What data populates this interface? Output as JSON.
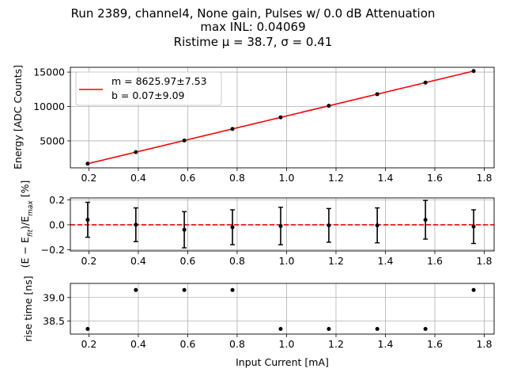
{
  "title_lines": [
    "Run 2389, channel4, None gain, Pulses w/ 0.0 dB Attenuation",
    "max INL: 0.04069",
    "Ristime μ = 38.7, σ = 0.41"
  ],
  "colors": {
    "fit_line": "#ff0000",
    "points": "#000000",
    "grid": "#b0b0b0",
    "zero_line": "#ff0000"
  },
  "chart_data": [
    {
      "type": "scatter",
      "panel": "energy",
      "title": "",
      "xlabel": "",
      "ylabel": "Energy [ADC Counts]",
      "xlim": [
        0.125,
        1.84
      ],
      "ylim": [
        1080,
        15700
      ],
      "x_ticks": [
        0.2,
        0.4,
        0.6,
        0.8,
        1.0,
        1.2,
        1.4,
        1.6,
        1.8
      ],
      "x_tick_labels": [
        "0.2",
        "0.4",
        "0.6",
        "0.8",
        "1.0",
        "1.2",
        "1.4",
        "1.6",
        "1.8"
      ],
      "y_ticks": [
        5000,
        10000,
        15000
      ],
      "y_tick_labels": [
        "5000",
        "10000",
        "15000"
      ],
      "grid": true,
      "x": [
        0.195,
        0.39,
        0.586,
        0.781,
        0.976,
        1.171,
        1.367,
        1.562,
        1.757
      ],
      "y": [
        1685,
        3368,
        5050,
        6738,
        8419,
        10104,
        11792,
        13475,
        15160
      ],
      "fit": {
        "m": 8625.97,
        "b": 0.07
      },
      "legend": {
        "placement": "top-left",
        "entries": [
          "m = 8625.97±7.53",
          "b = 0.07±9.09"
        ]
      }
    },
    {
      "type": "scatter",
      "panel": "residual",
      "title": "",
      "xlabel": "",
      "ylabel": "(E − E_fit)/E_max [%]",
      "xlim": [
        0.125,
        1.84
      ],
      "ylim": [
        -0.21,
        0.215
      ],
      "x_ticks": [
        0.2,
        0.4,
        0.6,
        0.8,
        1.0,
        1.2,
        1.4,
        1.6,
        1.8
      ],
      "x_tick_labels": [
        "0.2",
        "0.4",
        "0.6",
        "0.8",
        "1.0",
        "1.2",
        "1.4",
        "1.6",
        "1.8"
      ],
      "y_ticks": [
        -0.2,
        0.0,
        0.2
      ],
      "y_tick_labels": [
        "−0.2",
        "0.0",
        "0.2"
      ],
      "grid": true,
      "x": [
        0.195,
        0.39,
        0.586,
        0.781,
        0.976,
        1.171,
        1.367,
        1.562,
        1.757
      ],
      "y": [
        0.04,
        0.0,
        -0.04,
        -0.02,
        -0.01,
        -0.005,
        -0.005,
        0.04,
        -0.015
      ],
      "yerr": [
        0.14,
        0.135,
        0.145,
        0.14,
        0.15,
        0.135,
        0.14,
        0.155,
        0.135
      ],
      "reference_line": 0.0
    },
    {
      "type": "scatter",
      "panel": "rise_time",
      "title": "",
      "xlabel": "Input Current [mA]",
      "ylabel": "rise time [ns]",
      "xlim": [
        0.125,
        1.84
      ],
      "ylim": [
        38.22,
        39.3
      ],
      "x_ticks": [
        0.2,
        0.4,
        0.6,
        0.8,
        1.0,
        1.2,
        1.4,
        1.6,
        1.8
      ],
      "x_tick_labels": [
        "0.2",
        "0.4",
        "0.6",
        "0.8",
        "1.0",
        "1.2",
        "1.4",
        "1.6",
        "1.8"
      ],
      "y_ticks": [
        38.5,
        39.0
      ],
      "y_tick_labels": [
        "38.5",
        "39.0"
      ],
      "grid": true,
      "x": [
        0.195,
        0.39,
        0.586,
        0.781,
        0.976,
        1.171,
        1.367,
        1.562,
        1.757
      ],
      "y": [
        38.33,
        39.16,
        39.16,
        39.16,
        38.33,
        38.33,
        38.33,
        38.33,
        39.16
      ]
    }
  ]
}
